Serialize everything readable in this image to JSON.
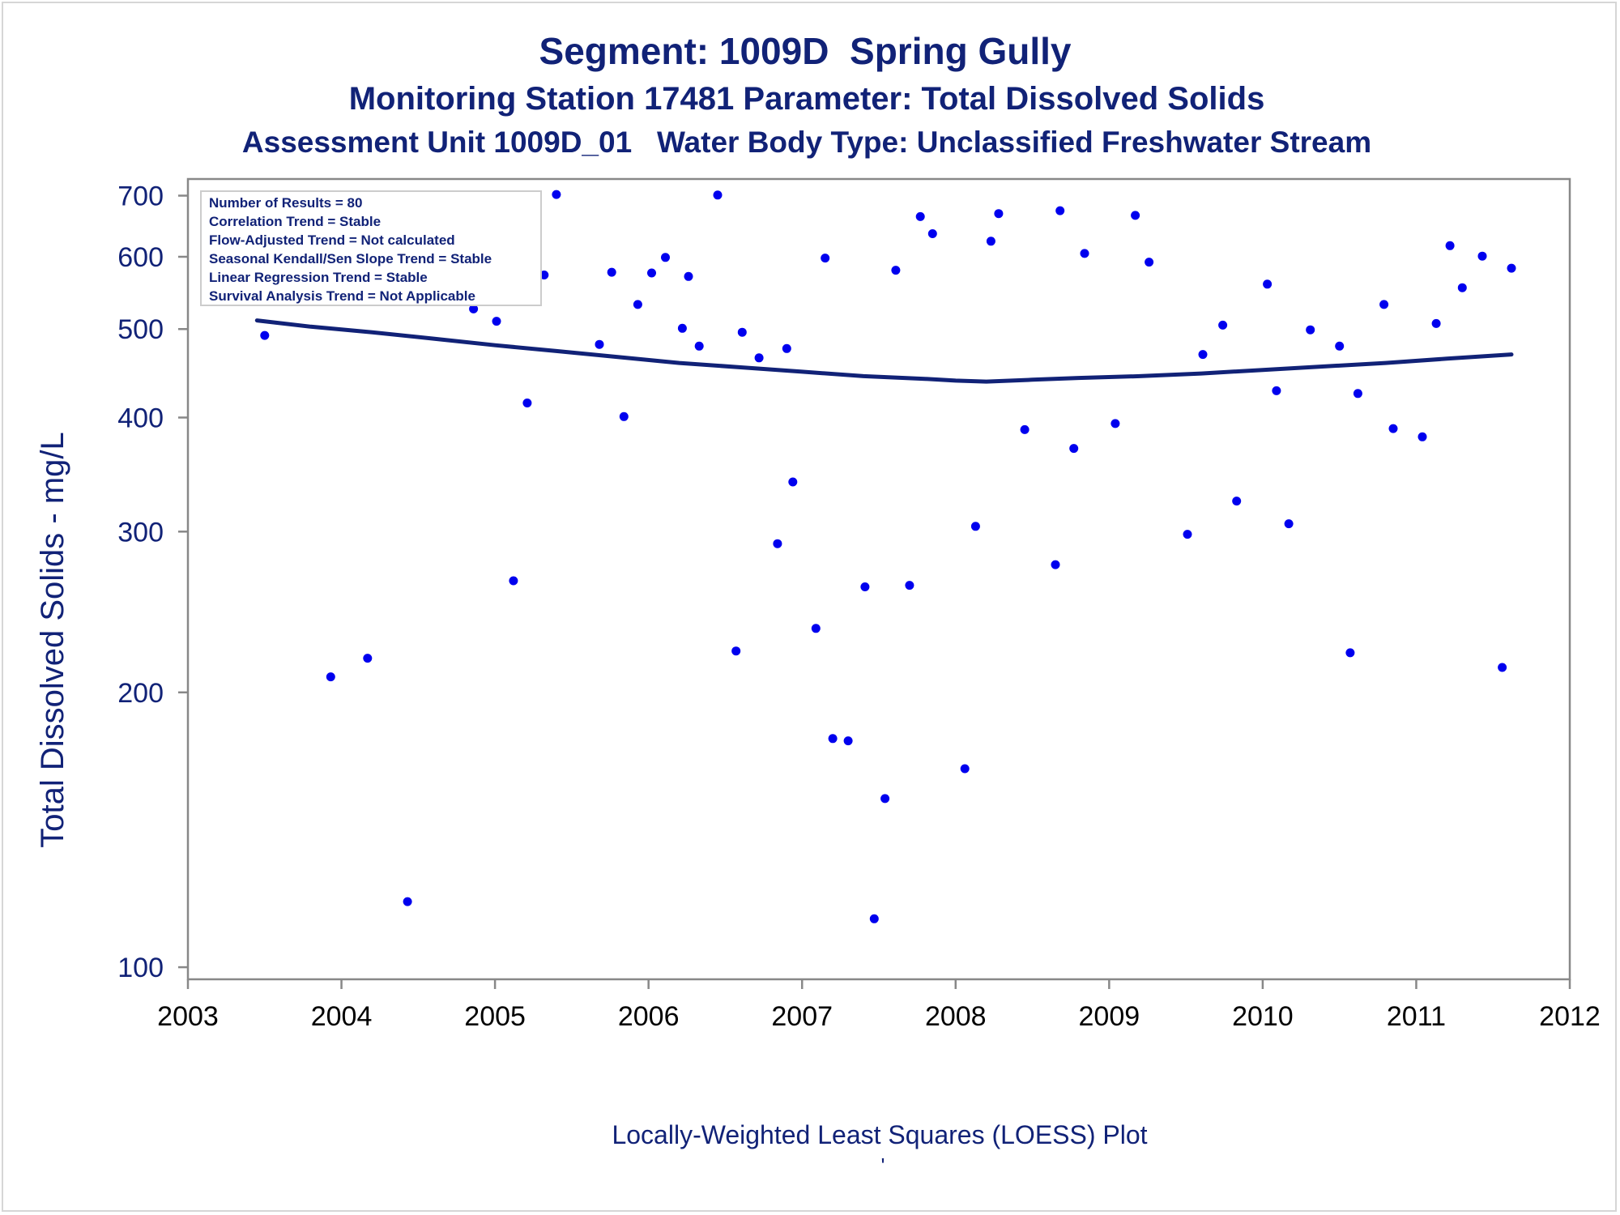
{
  "titles": {
    "line1": "Segment: 1009D  Spring Gully",
    "line2": "Monitoring Station 17481 Parameter: Total Dissolved Solids",
    "line3": "Assessment Unit 1009D_01   Water Body Type: Unclassified Freshwater Stream"
  },
  "footer": {
    "caption": "Locally-Weighted Least Squares (LOESS) Plot",
    "mark": "'"
  },
  "stats_box": [
    "Number of Results = 80",
    "Correlation Trend = Stable",
    "Flow-Adjusted Trend = Not calculated",
    "Seasonal Kendall/Sen Slope Trend = Stable",
    "Linear Regression Trend = Stable",
    "Survival Analysis Trend = Not Applicable"
  ],
  "chart_data": {
    "type": "scatter",
    "ylabel": "Total Dissolved Solids - mg/L",
    "xlabel": "",
    "y_scale": "log",
    "xlim": [
      2003,
      2012
    ],
    "ylim": [
      97,
      730
    ],
    "x_ticks": [
      2003,
      2004,
      2005,
      2006,
      2007,
      2008,
      2009,
      2010,
      2011,
      2012
    ],
    "y_ticks": [
      100,
      200,
      300,
      400,
      500,
      600,
      700
    ],
    "grid": false,
    "colors": {
      "points": "#0000ee",
      "loess": "#112277",
      "text": "#112277",
      "axis": "#888888"
    },
    "series": [
      {
        "kind": "points",
        "x": [
          2003.45,
          2003.5,
          2003.6,
          2003.93,
          2004.01,
          2004.09,
          2004.17,
          2004.25,
          2004.34,
          2004.43,
          2004.53,
          2004.61,
          2004.69,
          2004.8,
          2004.86,
          2004.97,
          2005.01,
          2005.12,
          2005.21,
          2005.32,
          2005.4,
          2005.68,
          2005.76,
          2005.84,
          2005.93,
          2006.02,
          2006.11,
          2006.22,
          2006.26,
          2006.33,
          2006.45,
          2006.57,
          2006.61,
          2006.72,
          2006.84,
          2006.9,
          2006.94,
          2007.09,
          2007.15,
          2007.2,
          2007.3,
          2007.41,
          2007.47,
          2007.54,
          2007.61,
          2007.7,
          2007.77,
          2007.85,
          2008.06,
          2008.13,
          2008.23,
          2008.28,
          2008.45,
          2008.65,
          2008.68,
          2008.77,
          2008.84,
          2009.04,
          2009.17,
          2009.26,
          2009.51,
          2009.61,
          2009.74,
          2009.83,
          2010.03,
          2010.09,
          2010.17,
          2010.31,
          2010.5,
          2010.57,
          2010.62,
          2010.79,
          2010.85,
          2011.04,
          2011.13,
          2011.22,
          2011.3,
          2011.43,
          2011.56,
          2011.62
        ],
        "y": [
          578,
          492,
          588,
          208,
          562,
          545,
          218,
          578,
          638,
          118,
          554,
          585,
          563,
          630,
          526,
          577,
          510,
          265,
          415,
          573,
          702,
          481,
          577,
          401,
          532,
          576,
          599,
          501,
          571,
          479,
          701,
          222,
          496,
          465,
          291,
          476,
          340,
          235,
          598,
          178,
          177,
          261,
          113,
          153,
          580,
          262,
          664,
          636,
          165,
          304,
          624,
          669,
          388,
          276,
          674,
          370,
          605,
          394,
          666,
          592,
          298,
          469,
          505,
          324,
          560,
          428,
          306,
          499,
          479,
          221,
          425,
          532,
          389,
          381,
          507,
          617,
          555,
          601,
          213,
          583
        ]
      },
      {
        "kind": "loess",
        "x": [
          2003.45,
          2003.8,
          2004.2,
          2004.6,
          2005.0,
          2005.4,
          2005.8,
          2006.2,
          2006.6,
          2007.0,
          2007.4,
          2007.8,
          2008.0,
          2008.2,
          2008.5,
          2008.8,
          2009.2,
          2009.6,
          2010.0,
          2010.4,
          2010.8,
          2011.2,
          2011.62
        ],
        "y": [
          511,
          503,
          496,
          488,
          480,
          473,
          466,
          459,
          454,
          449,
          444,
          441,
          439,
          438,
          440,
          442,
          444,
          447,
          451,
          455,
          459,
          464,
          469
        ]
      }
    ]
  }
}
